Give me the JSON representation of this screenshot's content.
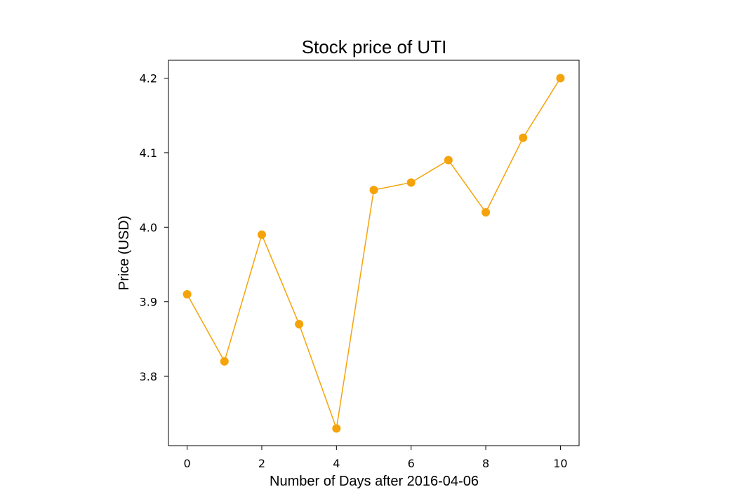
{
  "chart_data": {
    "type": "line",
    "title": "Stock price of UTI",
    "xlabel": "Number of Days after 2016-04-06",
    "ylabel": "Price (USD)",
    "x": [
      0,
      1,
      2,
      3,
      4,
      5,
      6,
      7,
      8,
      9,
      10
    ],
    "series": [
      {
        "values": [
          3.91,
          3.82,
          3.99,
          3.87,
          3.73,
          4.05,
          4.06,
          4.09,
          4.02,
          4.12,
          4.2
        ]
      }
    ],
    "xlim": [
      -0.5,
      10.5
    ],
    "ylim": [
      3.707,
      4.224
    ],
    "xticks": [
      0,
      2,
      4,
      6,
      8,
      10
    ],
    "xtick_labels": [
      "0",
      "2",
      "4",
      "6",
      "8",
      "10"
    ],
    "yticks": [
      3.8,
      3.9,
      4.0,
      4.1,
      4.2
    ],
    "ytick_labels": [
      "3.8",
      "3.9",
      "4.0",
      "4.1",
      "4.2"
    ],
    "line_color": "#f5a30a",
    "marker": "circle",
    "grid": false,
    "legend": false
  }
}
